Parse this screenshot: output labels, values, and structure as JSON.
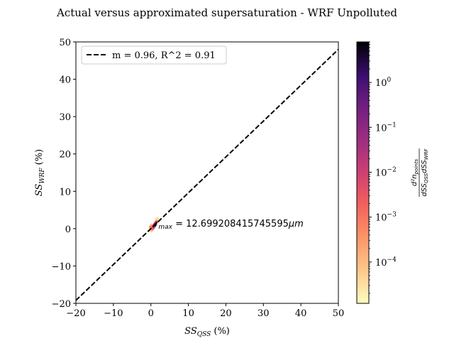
{
  "chart_data": {
    "type": "scatter",
    "title": "Actual versus approximated supersaturation - WRF Unpolluted",
    "xlabel_base": "SS",
    "xlabel_sub": "QSS",
    "xlabel_unit": " (%)",
    "ylabel_base": "SS",
    "ylabel_sub": "WRF",
    "ylabel_unit": " (%)",
    "xlim": [
      -20,
      50
    ],
    "ylim": [
      -20,
      50
    ],
    "xticks": [
      -20,
      -10,
      0,
      10,
      20,
      30,
      40,
      50
    ],
    "yticks": [
      -20,
      -10,
      0,
      10,
      20,
      30,
      40,
      50
    ],
    "xtick_labels": [
      "−20",
      "−10",
      "0",
      "10",
      "20",
      "30",
      "40",
      "50"
    ],
    "ytick_labels": [
      "−20",
      "−10",
      "0",
      "10",
      "20",
      "30",
      "40",
      "50"
    ],
    "grid": false,
    "legend_position": "upper-left",
    "fit_line": {
      "label": "m = 0.96, R^2 = 0.91",
      "slope": 0.96,
      "r2": 0.91,
      "style": "dashed",
      "color": "#000000",
      "x": [
        -20,
        50
      ],
      "y": [
        -19.2,
        48.0
      ]
    },
    "density_points": [
      {
        "x": 0.1,
        "y": -0.5,
        "density": 4e-05
      },
      {
        "x": 0.3,
        "y": -0.1,
        "density": 0.0003
      },
      {
        "x": 0.5,
        "y": 0.2,
        "density": 0.002
      },
      {
        "x": 0.7,
        "y": 0.5,
        "density": 0.01
      },
      {
        "x": 0.9,
        "y": 0.8,
        "density": 0.05
      },
      {
        "x": 1.1,
        "y": 1.1,
        "density": 0.2
      },
      {
        "x": 1.3,
        "y": 1.5,
        "density": 0.003
      },
      {
        "x": 1.5,
        "y": 2.0,
        "density": 0.0002
      },
      {
        "x": 1.7,
        "y": 2.6,
        "density": 3e-05
      },
      {
        "x": 0.0,
        "y": 0.4,
        "density": 0.0006
      },
      {
        "x": 0.2,
        "y": 0.9,
        "density": 8e-05
      }
    ],
    "annotation": {
      "prefix": "r",
      "subscript": "max",
      "equals_text": " = 12.699208415745595",
      "unit": "μm",
      "x": 1.0,
      "y": 1.5
    },
    "colorbar": {
      "label_numerator": "d²n",
      "label_numerator_sub": "points",
      "label_denominator": "dSS",
      "label_denominator_sub1": "QSS",
      "label_denominator_sub2": "WRF",
      "scale": "log",
      "colormap": "magma_r",
      "range": [
        1.2e-05,
        8
      ],
      "ticks": [
        {
          "value": 1,
          "base": "10",
          "exp": "0"
        },
        {
          "value": 0.1,
          "base": "10",
          "exp": "−1"
        },
        {
          "value": 0.01,
          "base": "10",
          "exp": "−2"
        },
        {
          "value": 0.001,
          "base": "10",
          "exp": "−3"
        },
        {
          "value": 0.0001,
          "base": "10",
          "exp": "−4"
        }
      ]
    }
  }
}
